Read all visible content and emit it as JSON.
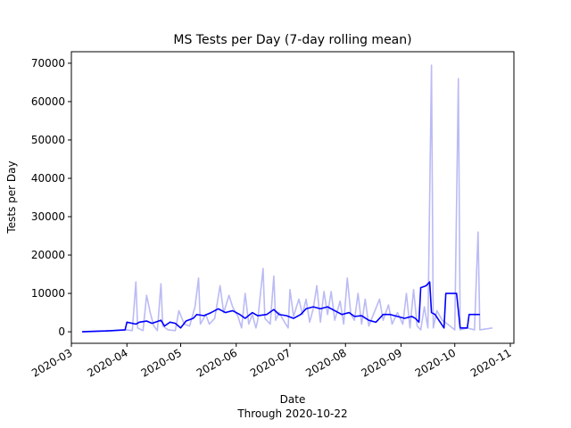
{
  "chart_data": {
    "type": "line",
    "title": "MS Tests per Day (7-day rolling mean)",
    "xlabel": "Date",
    "xlabel_sub": "Through 2020-10-22",
    "ylabel": "Tests per Day",
    "xlim": [
      "2020-03-01",
      "2020-11-03"
    ],
    "ylim": [
      -3000,
      73000
    ],
    "x_ticks": [
      "2020-03",
      "2020-04",
      "2020-05",
      "2020-06",
      "2020-07",
      "2020-08",
      "2020-09",
      "2020-10",
      "2020-11"
    ],
    "y_ticks": [
      0,
      10000,
      20000,
      30000,
      40000,
      50000,
      60000,
      70000
    ],
    "y_tick_labels": [
      "0",
      "10000",
      "20000",
      "30000",
      "40000",
      "50000",
      "60000",
      "70000"
    ],
    "grid": false,
    "series": [
      {
        "color": "#bbbbf5",
        "values": [
          [
            "2020-03-07",
            0
          ],
          [
            "2020-03-15",
            200
          ],
          [
            "2020-03-25",
            300
          ],
          [
            "2020-04-01",
            500
          ],
          [
            "2020-04-04",
            300
          ],
          [
            "2020-04-06",
            13000
          ],
          [
            "2020-04-07",
            1000
          ],
          [
            "2020-04-10",
            300
          ],
          [
            "2020-04-12",
            9500
          ],
          [
            "2020-04-14",
            5000
          ],
          [
            "2020-04-16",
            1500
          ],
          [
            "2020-04-18",
            300
          ],
          [
            "2020-04-20",
            12500
          ],
          [
            "2020-04-21",
            1500
          ],
          [
            "2020-04-24",
            500
          ],
          [
            "2020-04-28",
            300
          ],
          [
            "2020-04-30",
            5500
          ],
          [
            "2020-05-03",
            2000
          ],
          [
            "2020-05-06",
            1500
          ],
          [
            "2020-05-09",
            6500
          ],
          [
            "2020-05-11",
            14000
          ],
          [
            "2020-05-12",
            2000
          ],
          [
            "2020-05-15",
            4500
          ],
          [
            "2020-05-17",
            2000
          ],
          [
            "2020-05-20",
            3500
          ],
          [
            "2020-05-23",
            12000
          ],
          [
            "2020-05-25",
            5000
          ],
          [
            "2020-05-28",
            9500
          ],
          [
            "2020-05-30",
            6500
          ],
          [
            "2020-06-02",
            4000
          ],
          [
            "2020-06-04",
            1000
          ],
          [
            "2020-06-06",
            10000
          ],
          [
            "2020-06-08",
            2000
          ],
          [
            "2020-06-10",
            4500
          ],
          [
            "2020-06-12",
            1000
          ],
          [
            "2020-06-13",
            3000
          ],
          [
            "2020-06-16",
            16500
          ],
          [
            "2020-06-17",
            3500
          ],
          [
            "2020-06-20",
            2000
          ],
          [
            "2020-06-22",
            14500
          ],
          [
            "2020-06-23",
            3000
          ],
          [
            "2020-06-25",
            5000
          ],
          [
            "2020-06-28",
            2500
          ],
          [
            "2020-06-30",
            1000
          ],
          [
            "2020-07-01",
            11000
          ],
          [
            "2020-07-03",
            4000
          ],
          [
            "2020-07-06",
            8500
          ],
          [
            "2020-07-08",
            4500
          ],
          [
            "2020-07-10",
            8500
          ],
          [
            "2020-07-12",
            2500
          ],
          [
            "2020-07-14",
            6000
          ],
          [
            "2020-07-16",
            12000
          ],
          [
            "2020-07-18",
            2500
          ],
          [
            "2020-07-20",
            10500
          ],
          [
            "2020-07-22",
            4500
          ],
          [
            "2020-07-24",
            10500
          ],
          [
            "2020-07-26",
            3000
          ],
          [
            "2020-07-29",
            8000
          ],
          [
            "2020-07-31",
            2000
          ],
          [
            "2020-08-02",
            14000
          ],
          [
            "2020-08-04",
            4500
          ],
          [
            "2020-08-06",
            3000
          ],
          [
            "2020-08-08",
            10000
          ],
          [
            "2020-08-10",
            2000
          ],
          [
            "2020-08-12",
            8500
          ],
          [
            "2020-08-14",
            1500
          ],
          [
            "2020-08-17",
            5000
          ],
          [
            "2020-08-20",
            8500
          ],
          [
            "2020-08-22",
            3000
          ],
          [
            "2020-08-25",
            7000
          ],
          [
            "2020-08-27",
            2000
          ],
          [
            "2020-08-30",
            5000
          ],
          [
            "2020-09-02",
            2000
          ],
          [
            "2020-09-04",
            10000
          ],
          [
            "2020-09-06",
            1000
          ],
          [
            "2020-09-08",
            11000
          ],
          [
            "2020-09-10",
            1500
          ],
          [
            "2020-09-12",
            500
          ],
          [
            "2020-09-14",
            6500
          ],
          [
            "2020-09-16",
            1000
          ],
          [
            "2020-09-18",
            69500
          ],
          [
            "2020-09-19",
            1000
          ],
          [
            "2020-09-21",
            5500
          ],
          [
            "2020-09-24",
            3000
          ],
          [
            "2020-09-27",
            2000
          ],
          [
            "2020-10-01",
            500
          ],
          [
            "2020-10-03",
            66000
          ],
          [
            "2020-10-04",
            500
          ],
          [
            "2020-10-08",
            1000
          ],
          [
            "2020-10-12",
            500
          ],
          [
            "2020-10-14",
            26000
          ],
          [
            "2020-10-15",
            500
          ],
          [
            "2020-10-22",
            1000
          ]
        ]
      },
      {
        "color": "#0000ff",
        "values": [
          [
            "2020-03-07",
            0
          ],
          [
            "2020-03-20",
            200
          ],
          [
            "2020-03-31",
            500
          ],
          [
            "2020-04-01",
            2500
          ],
          [
            "2020-04-06",
            2000
          ],
          [
            "2020-04-08",
            2500
          ],
          [
            "2020-04-12",
            2800
          ],
          [
            "2020-04-15",
            2200
          ],
          [
            "2020-04-20",
            3000
          ],
          [
            "2020-04-22",
            1500
          ],
          [
            "2020-04-25",
            2500
          ],
          [
            "2020-04-28",
            2200
          ],
          [
            "2020-05-01",
            1000
          ],
          [
            "2020-05-04",
            2800
          ],
          [
            "2020-05-08",
            3500
          ],
          [
            "2020-05-10",
            4500
          ],
          [
            "2020-05-14",
            4200
          ],
          [
            "2020-05-18",
            5000
          ],
          [
            "2020-05-22",
            6000
          ],
          [
            "2020-05-26",
            5000
          ],
          [
            "2020-05-30",
            5500
          ],
          [
            "2020-06-03",
            4500
          ],
          [
            "2020-06-06",
            3500
          ],
          [
            "2020-06-10",
            5000
          ],
          [
            "2020-06-13",
            4200
          ],
          [
            "2020-06-18",
            4500
          ],
          [
            "2020-06-22",
            5800
          ],
          [
            "2020-06-25",
            4500
          ],
          [
            "2020-06-29",
            4200
          ],
          [
            "2020-07-03",
            3500
          ],
          [
            "2020-07-07",
            4500
          ],
          [
            "2020-07-10",
            6000
          ],
          [
            "2020-07-14",
            6500
          ],
          [
            "2020-07-18",
            6000
          ],
          [
            "2020-07-22",
            6500
          ],
          [
            "2020-07-26",
            5500
          ],
          [
            "2020-07-30",
            4500
          ],
          [
            "2020-08-03",
            5000
          ],
          [
            "2020-08-06",
            4000
          ],
          [
            "2020-08-10",
            4200
          ],
          [
            "2020-08-14",
            3000
          ],
          [
            "2020-08-18",
            2500
          ],
          [
            "2020-08-22",
            4500
          ],
          [
            "2020-08-26",
            4500
          ],
          [
            "2020-08-30",
            4000
          ],
          [
            "2020-09-03",
            3500
          ],
          [
            "2020-09-07",
            4000
          ],
          [
            "2020-09-09",
            3500
          ],
          [
            "2020-09-11",
            2500
          ],
          [
            "2020-09-12",
            11500
          ],
          [
            "2020-09-15",
            12000
          ],
          [
            "2020-09-17",
            13000
          ],
          [
            "2020-09-18",
            5000
          ],
          [
            "2020-09-20",
            4500
          ],
          [
            "2020-09-25",
            1000
          ],
          [
            "2020-09-26",
            10000
          ],
          [
            "2020-10-02",
            10000
          ],
          [
            "2020-10-04",
            1000
          ],
          [
            "2020-10-08",
            1000
          ],
          [
            "2020-10-09",
            4500
          ],
          [
            "2020-10-15",
            4500
          ]
        ]
      }
    ]
  }
}
